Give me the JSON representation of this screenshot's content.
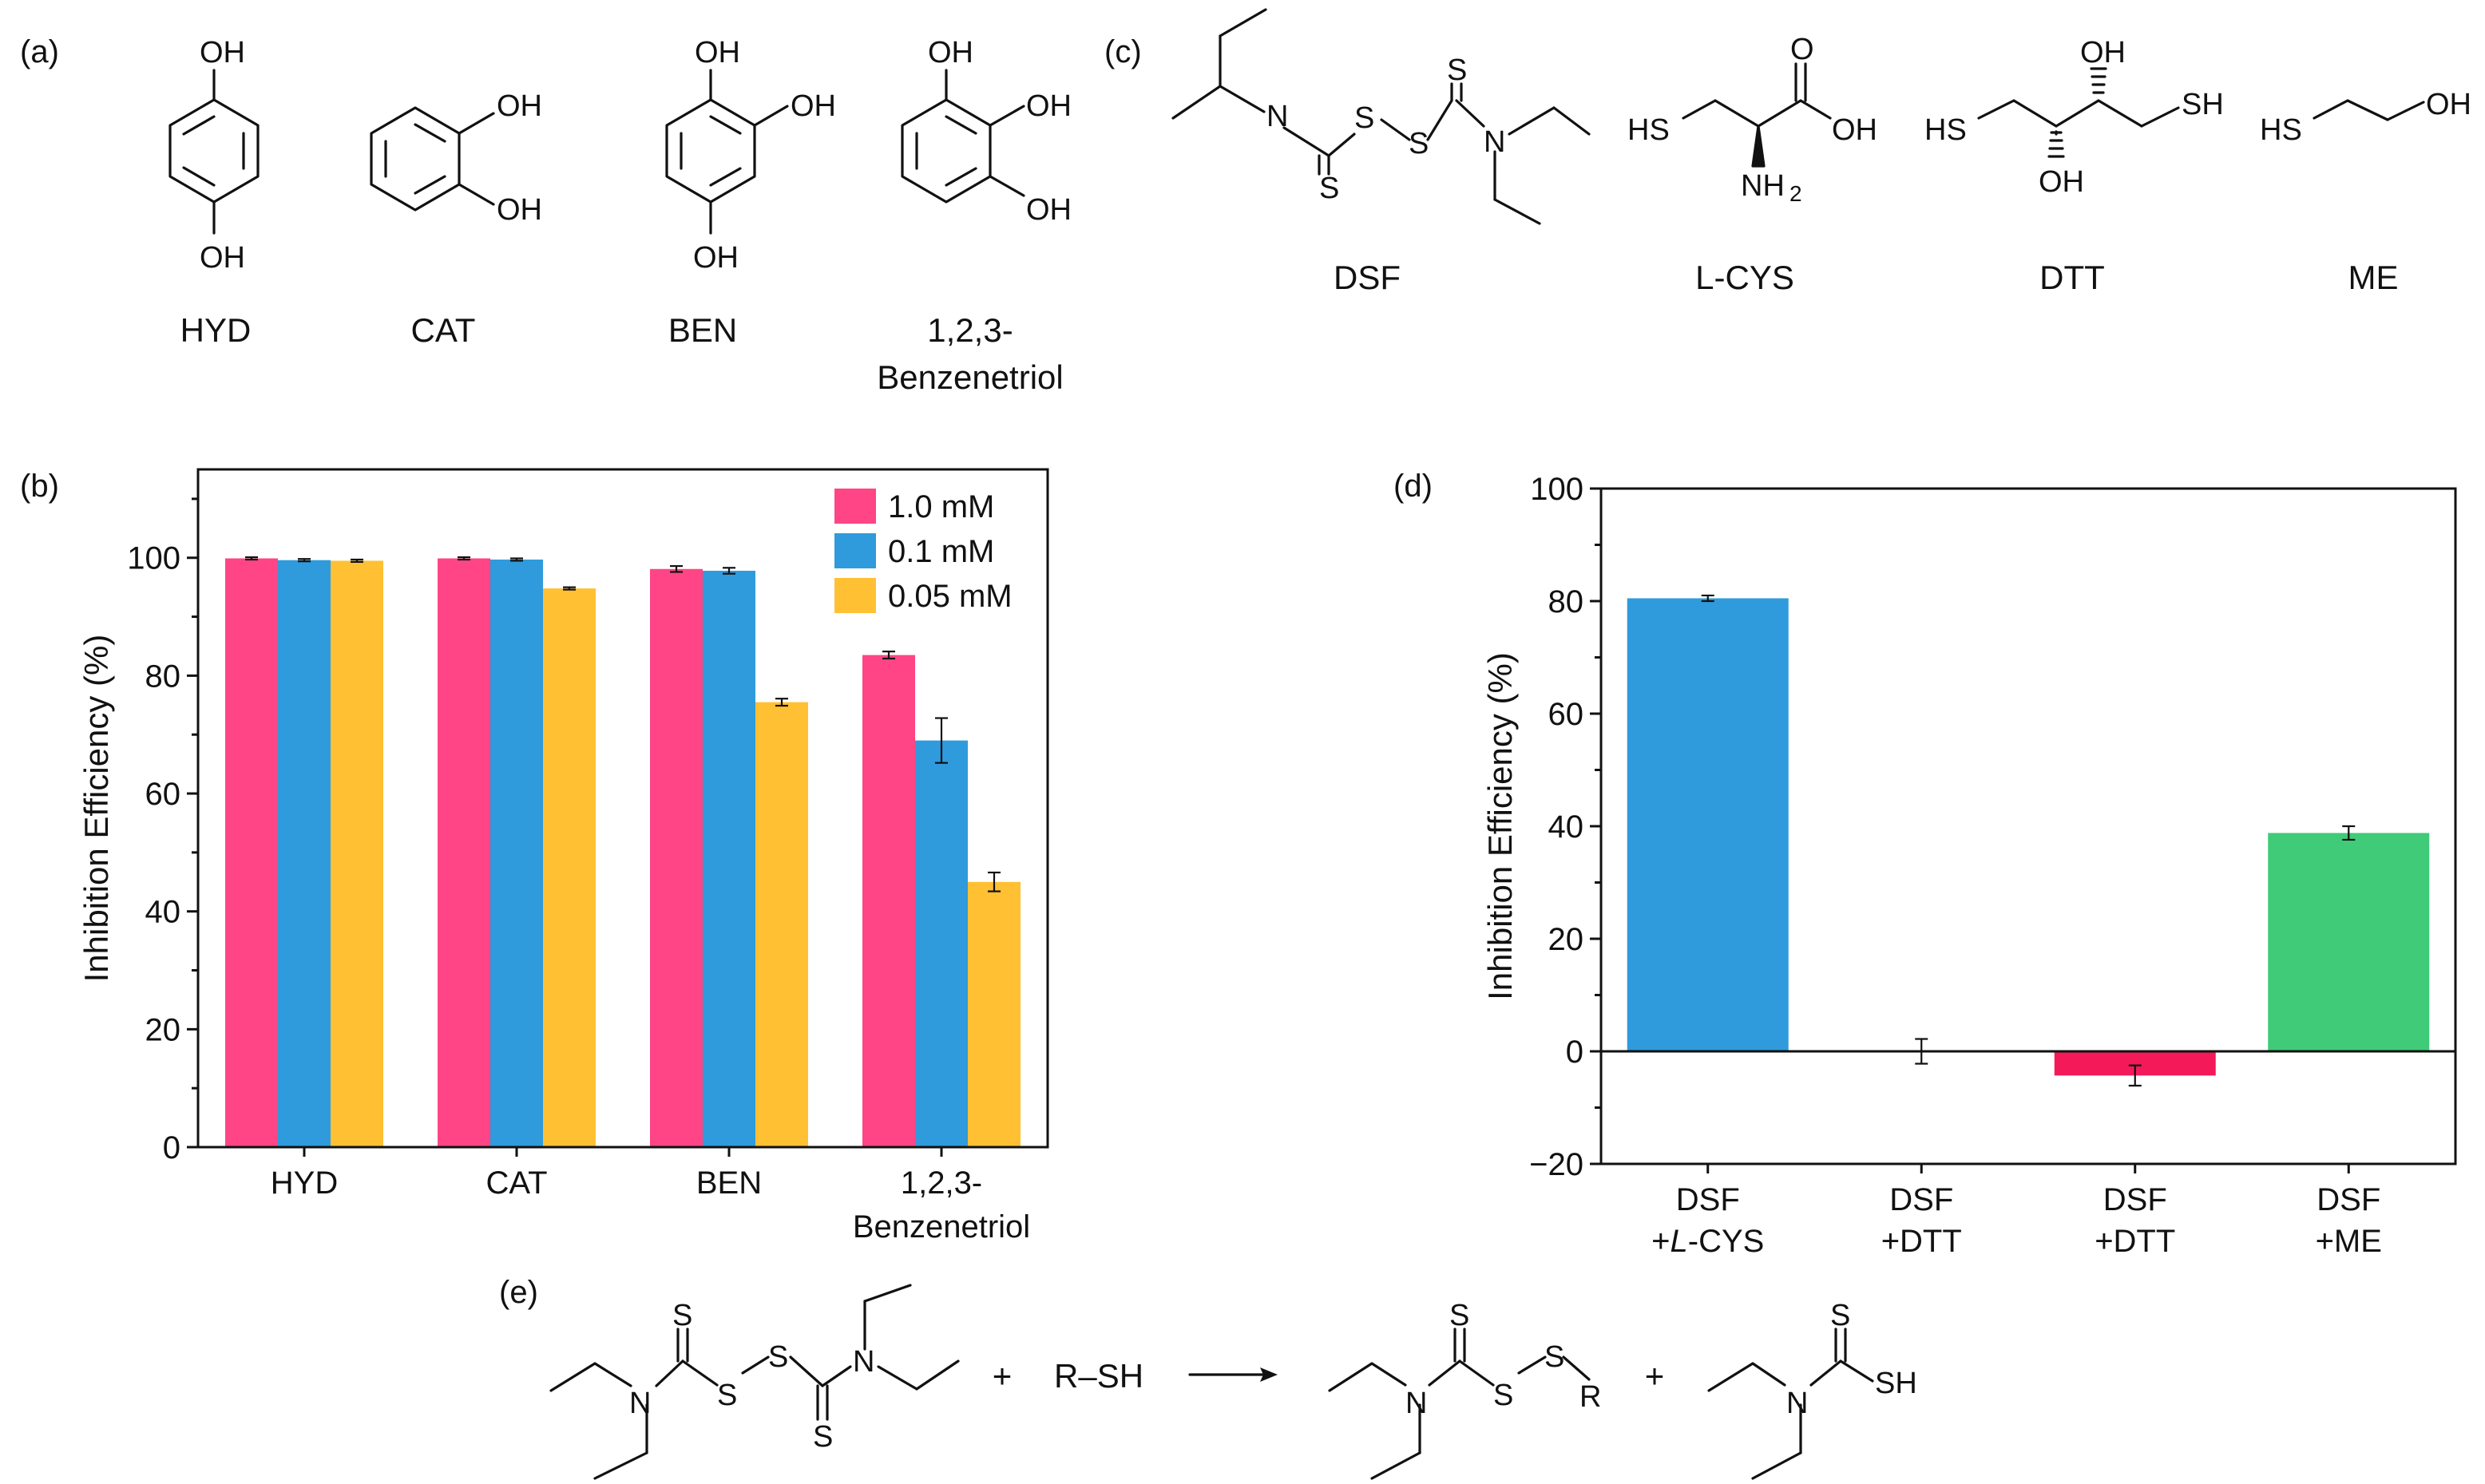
{
  "panels": {
    "a": "(a)",
    "b": "(b)",
    "c": "(c)",
    "d": "(d)",
    "e": "(e)"
  },
  "structures_a": {
    "names": [
      "HYD",
      "CAT",
      "BEN",
      "1,2,3-",
      "Benzenetriol"
    ],
    "atoms": {
      "oh": "OH"
    }
  },
  "structures_c": {
    "names": [
      "DSF",
      "L-CYS",
      "DTT",
      "ME"
    ],
    "atoms": {
      "n": "N",
      "s": "S",
      "hs": "HS",
      "sh": "SH",
      "oh": "OH",
      "o": "O",
      "nh": "NH",
      "sub2": "2"
    }
  },
  "reaction_e": {
    "plus": "+",
    "reagent": "R–SH",
    "r": "R",
    "s": "S",
    "n": "N",
    "sh": "SH"
  },
  "chart_data": [
    {
      "id": "b",
      "type": "bar",
      "title": "",
      "xlabel": "",
      "ylabel": "Inhibition Efficiency (%)",
      "ylim": [
        0,
        115
      ],
      "yticks": [
        0,
        20,
        40,
        60,
        80,
        100
      ],
      "categories": [
        "HYD",
        "CAT",
        "BEN",
        "1,2,3-\nBenzenetriol"
      ],
      "category_lines": [
        [
          "HYD"
        ],
        [
          "CAT"
        ],
        [
          "BEN"
        ],
        [
          "1,2,3-",
          "Benzenetriol"
        ]
      ],
      "legend_position": "top-right",
      "series": [
        {
          "name": "1.0 mM",
          "color": "#FF4586",
          "values": [
            99.9,
            99.9,
            98.1,
            83.5
          ],
          "errors": [
            0.2,
            0.2,
            0.5,
            0.6
          ]
        },
        {
          "name": "0.1 mM",
          "color": "#2F9BDC",
          "values": [
            99.6,
            99.7,
            97.8,
            69.0
          ],
          "errors": [
            0.2,
            0.2,
            0.5,
            3.8
          ]
        },
        {
          "name": "0.05 mM",
          "color": "#FFC033",
          "values": [
            99.5,
            94.8,
            75.5,
            45.0
          ],
          "errors": [
            0.2,
            0.2,
            0.6,
            1.6
          ]
        }
      ]
    },
    {
      "id": "d",
      "type": "bar",
      "title": "",
      "xlabel": "",
      "ylabel": "Inhibition Efficiency (%)",
      "ylim": [
        -20,
        100
      ],
      "yticks": [
        -20,
        0,
        20,
        40,
        60,
        80,
        100
      ],
      "categories": [
        "DSF +L-CYS",
        "DSF +DTT",
        "DSF +DTT",
        "DSF +ME"
      ],
      "category_lines": [
        [
          "DSF",
          "+L-CYS"
        ],
        [
          "DSF",
          "+DTT"
        ],
        [
          "DSF",
          "+DTT"
        ],
        [
          "DSF",
          "+ME"
        ]
      ],
      "values": [
        80.5,
        0.0,
        -4.3,
        38.8
      ],
      "errors": [
        0.5,
        2.2,
        1.8,
        1.2
      ],
      "colors": [
        "#2F9BDC",
        "#2F9BDC",
        "#F41A5A",
        "#3FCB78"
      ]
    }
  ]
}
